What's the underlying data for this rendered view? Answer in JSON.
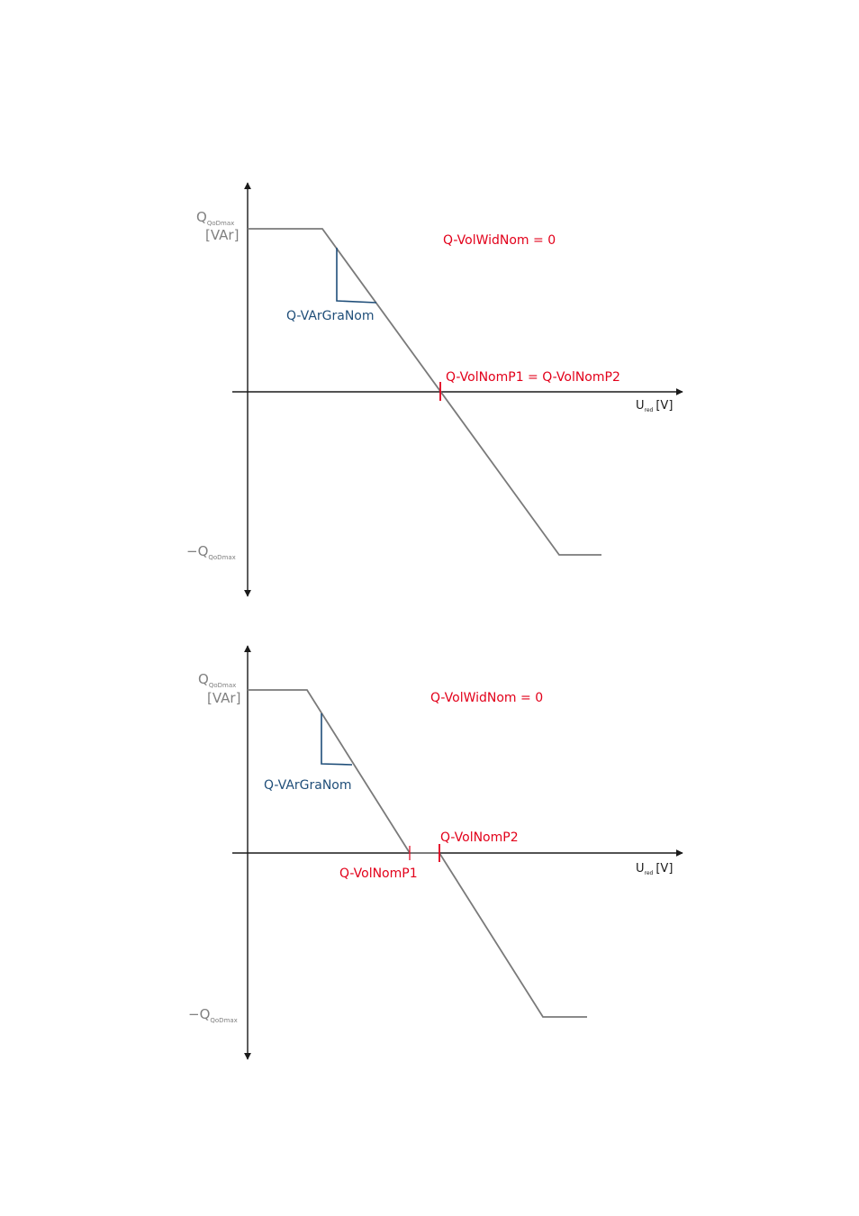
{
  "colors": {
    "axis": "#1a1a1a",
    "curve": "#7a7a7a",
    "gray_text": "#808080",
    "red": "#e2001a",
    "blue": "#1f4e79"
  },
  "diagram1": {
    "y_label_main": "Q",
    "y_label_sub": "QoDmax",
    "y_unit": "[VAr]",
    "y_neg_prefix": "−",
    "y_neg_main": "Q",
    "y_neg_sub": "QoDmax",
    "x_label_main": "U",
    "x_label_sub": "red",
    "x_unit": "[V]",
    "width_label": "Q-VolWidNom = 0",
    "gradient_label": "Q-VArGraNom",
    "point_label": "Q-VolNomP1 = Q-VolNomP2"
  },
  "diagram2": {
    "y_label_main": "Q",
    "y_label_sub": "QoDmax",
    "y_unit": "[VAr]",
    "y_neg_prefix": "−",
    "y_neg_main": "Q",
    "y_neg_sub": "QoDmax",
    "x_label_main": "U",
    "x_label_sub": "red",
    "x_unit": "[V]",
    "width_label": "Q-VolWidNom = 0",
    "gradient_label": "Q-VArGraNom",
    "p1_label": "Q-VolNomP1",
    "p2_label": "Q-VolNomP2"
  }
}
